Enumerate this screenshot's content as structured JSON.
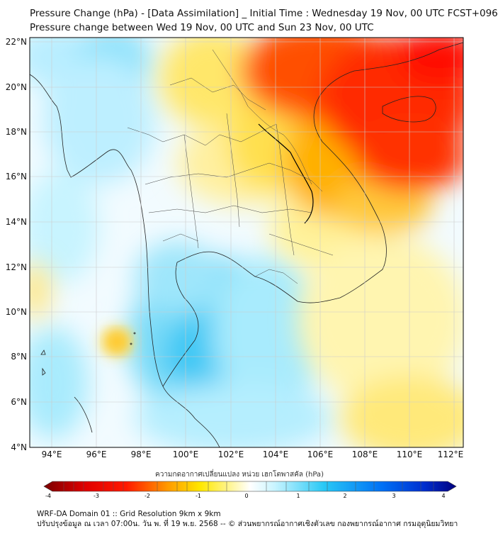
{
  "title": {
    "line1": "Pressure Change (hPa) - [Data Assimilation] _ Initial Time : Wednesday 19 Nov, 00 UTC FCST+096",
    "line2": "Pressure change between Wed 19 Nov, 00 UTC and Sun 23 Nov, 00 UTC"
  },
  "map": {
    "lon_labels": [
      "94°E",
      "96°E",
      "98°E",
      "100°E",
      "102°E",
      "104°E",
      "106°E",
      "108°E",
      "110°E",
      "112°E"
    ],
    "lat_labels": [
      "22°N",
      "20°N",
      "18°N",
      "16°N",
      "14°N",
      "12°N",
      "10°N",
      "8°N",
      "6°N",
      "4°N"
    ],
    "lon_range": [
      93,
      112.5
    ],
    "lat_range": [
      4,
      22
    ],
    "grid": true
  },
  "colorbar": {
    "title": "ความกดอากาศเปลี่ยนแปลง หน่วย เฮกโตพาสคัล (hPa)",
    "ticks": [
      "-4",
      "-3",
      "-2",
      "-1",
      "0",
      "1",
      "2",
      "3",
      "4"
    ],
    "range": [
      -4,
      4
    ],
    "colors": {
      "neg_max": "#7a0000",
      "red": "#ff1a00",
      "orange": "#ff9a00",
      "yellow": "#ffe800",
      "pale_yellow": "#fff7a8",
      "white": "#ffffff",
      "pale_cyan": "#c8f4ff",
      "cyan": "#28c8f5",
      "blue": "#0050f0",
      "pos_max": "#000080"
    }
  },
  "footer": {
    "line1": "WRF-DA Domain 01 :: Grid Resolution 9km x 9km",
    "line2": "ปรับปรุงข้อมูล ณ เวลา 07:00น. วัน พ. ที่ 19 พ.ย. 2568 -- © ส่วนพยากรณ์อากาศเชิงตัวเลข กองพยากรณ์อากาศ กรมอุตุนิยมวิทยา"
  }
}
